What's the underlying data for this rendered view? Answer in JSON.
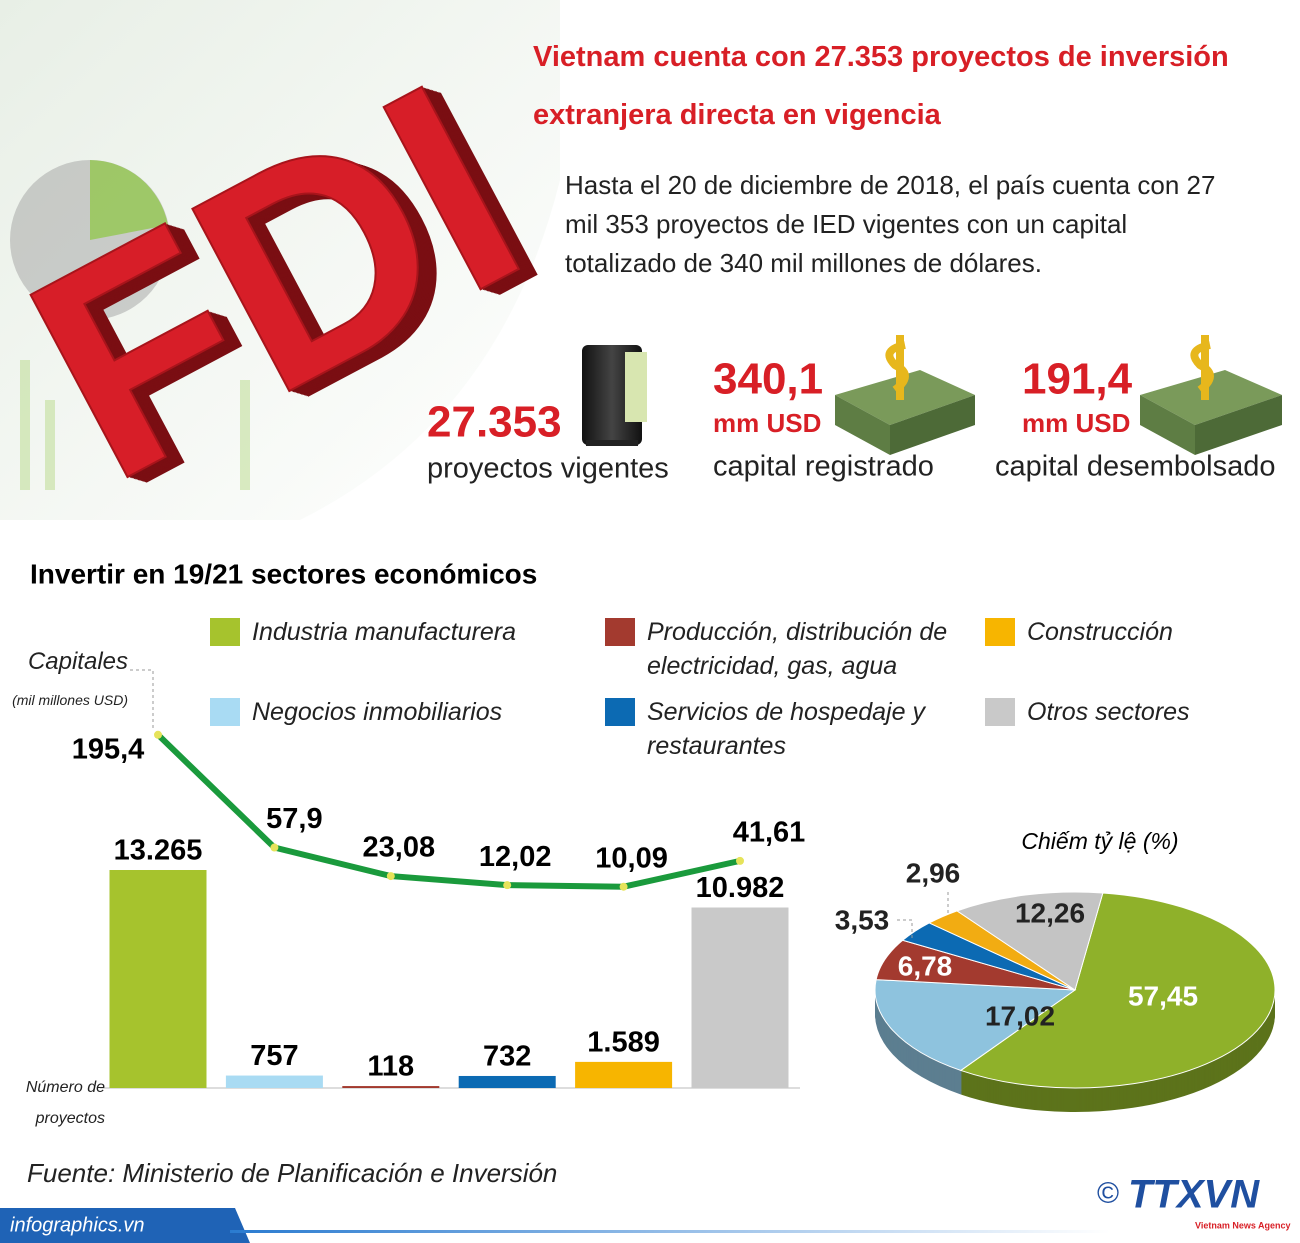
{
  "header": {
    "title": "Vietnam cuenta con 27.353 proyectos de inversión extranjera directa en vigencia",
    "logo_text": "FDI"
  },
  "intro": "Hasta el 20 de diciembre de 2018, el país cuenta con 27 mil 353 proyectos de IED vigentes con un capital totalizado de 340 mil millones de dólares.",
  "stats": [
    {
      "value": "27.353",
      "label": "proyectos vigentes"
    },
    {
      "value": "340,1",
      "unit": "mm USD",
      "label": "capital registrado"
    },
    {
      "value": "191,4",
      "unit": "mm USD",
      "label": "capital desembolsado"
    }
  ],
  "chart_data": [
    {
      "type": "bar",
      "title": "Invertir en 19/21 sectores económicos",
      "categories": [
        "Industria manufacturera",
        "Negocios inmobiliarios",
        "Producción, distribución de electricidad, gas, agua",
        "Servicios de hospedaje y restaurantes",
        "Construcción",
        "Otros sectores"
      ],
      "colors": [
        "#a6c32d",
        "#a9dbf3",
        "#a33a2f",
        "#0c6ab3",
        "#f7b500",
        "#c9c9c9"
      ],
      "values": [
        13265,
        757,
        118,
        732,
        1589,
        10982
      ],
      "value_labels": [
        "13.265",
        "757",
        "118",
        "732",
        "1.589",
        "10.982"
      ],
      "y_label": "Número de proyectos",
      "line": {
        "type": "line",
        "label": "Capitales",
        "unit": "(mil millones USD)",
        "color": "#1a9a3c",
        "values": [
          195.4,
          57.9,
          23.08,
          12.02,
          10.09,
          41.61
        ],
        "value_labels": [
          "195,4",
          "57,9",
          "23,08",
          "12,02",
          "10,09",
          "41,61"
        ]
      }
    },
    {
      "type": "pie",
      "title": "Chiếm tỷ lệ (%)",
      "values": [
        57.45,
        17.02,
        6.78,
        3.53,
        2.96,
        12.26
      ],
      "value_labels": [
        "57,45",
        "17,02",
        "6,78",
        "3,53",
        "2,96",
        "12,26"
      ],
      "colors": [
        "#8fb12a",
        "#8ec3de",
        "#a33a2f",
        "#0c6ab3",
        "#f2ac12",
        "#c4c4c4"
      ]
    }
  ],
  "source": "Fuente: Ministerio de Planificación e Inversión",
  "footer": {
    "site": "infographics.vn",
    "copyright": "©",
    "agency": "TTXVN",
    "agency_name": "Vietnam News Agency"
  }
}
